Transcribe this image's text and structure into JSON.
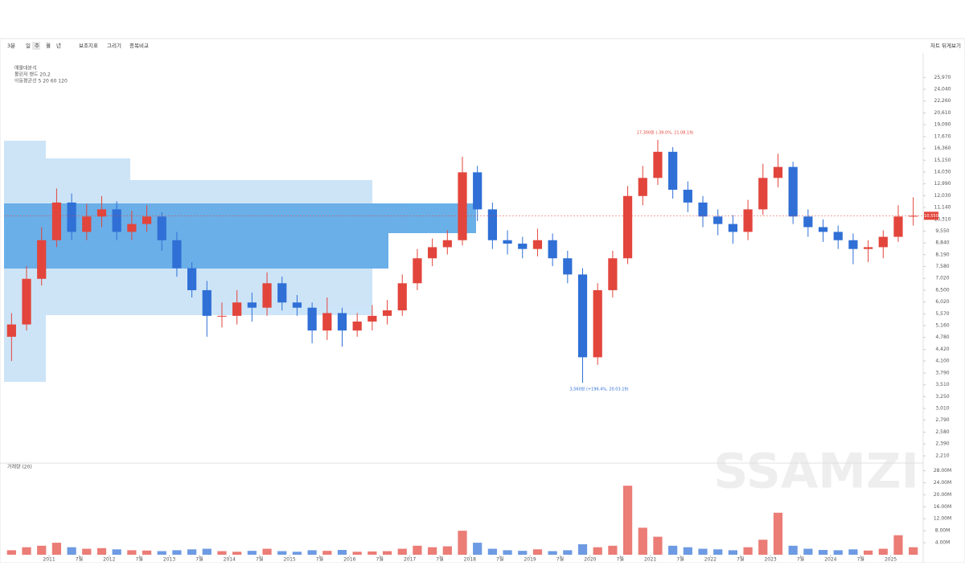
{
  "toolbar": {
    "period": "3분",
    "intervals": [
      "일",
      "주",
      "월",
      "년"
    ],
    "tools": [
      "보조지표",
      "그리기",
      "종목비교"
    ],
    "right": "차트 뒤게보기"
  },
  "legend": [
    "매물대분석 ",
    "볼린저 밴드 20,2",
    "이동평균선 5 20 60 120"
  ],
  "annotations": {
    "high": "17,300원 (-39.0%, 21.08.19)",
    "low": "3,560원 (+196.4%, 20.03.19)",
    "watermark": "SSAMZI",
    "volume_title": "거래량 (20)"
  },
  "chart_data": {
    "type": "candlestick",
    "log_scale": true,
    "up_color": "#e2453c",
    "down_color": "#2f6fd6",
    "volume_color": "#e8a0a0",
    "open": [
      4800,
      5200,
      7000,
      9000,
      11500,
      9500,
      10500,
      11000,
      9500,
      10000,
      10500,
      9000,
      7500,
      6500,
      5500,
      5500,
      6000,
      5800,
      6800,
      6000,
      5800,
      5000,
      5600,
      5000,
      5300,
      5500,
      5700,
      6800,
      8000,
      8600,
      9000,
      14000,
      11000,
      9000,
      8800,
      8500,
      9000,
      8000,
      7200,
      4200,
      6500,
      8000,
      12000,
      13500,
      16000,
      12500,
      11500,
      10500,
      10000,
      9500,
      11000,
      13500,
      14500,
      10500,
      9800,
      9500,
      9000,
      8500,
      8600,
      9200,
      10500
    ],
    "high": [
      5600,
      7600,
      9800,
      12600,
      12200,
      11400,
      12000,
      11600,
      10900,
      11300,
      10800,
      9500,
      7800,
      6900,
      6000,
      6500,
      6400,
      7300,
      7100,
      6300,
      6000,
      6200,
      5800,
      5600,
      5900,
      6100,
      7200,
      8500,
      9100,
      9600,
      15500,
      14600,
      11500,
      9600,
      9200,
      9700,
      9400,
      8400,
      7500,
      6800,
      8400,
      12800,
      14600,
      17300,
      16500,
      13200,
      12000,
      11000,
      10600,
      11700,
      14800,
      15800,
      15000,
      11000,
      10300,
      9900,
      9400,
      9000,
      9600,
      11300,
      11900
    ],
    "low": [
      4100,
      5000,
      6700,
      8600,
      9000,
      9000,
      9800,
      9000,
      9000,
      9500,
      8400,
      7100,
      6200,
      4800,
      5100,
      5200,
      5300,
      5500,
      5700,
      5500,
      4600,
      4700,
      4500,
      4800,
      5000,
      5200,
      5500,
      6500,
      7600,
      8200,
      8700,
      10200,
      8500,
      8200,
      8000,
      8100,
      7600,
      6800,
      3560,
      4000,
      6200,
      7700,
      11300,
      12900,
      11800,
      10800,
      9800,
      9300,
      8800,
      9000,
      10600,
      12700,
      10000,
      9200,
      8900,
      8500,
      7700,
      7800,
      8000,
      8900,
      9900
    ],
    "close": [
      5200,
      7000,
      9000,
      11500,
      9500,
      10500,
      11000,
      9500,
      10000,
      10500,
      9000,
      7500,
      6500,
      5500,
      5500,
      6000,
      5800,
      6800,
      6000,
      5800,
      5000,
      5600,
      5000,
      5300,
      5500,
      5700,
      6800,
      8000,
      8600,
      9000,
      14000,
      11000,
      9000,
      8800,
      8500,
      9000,
      8000,
      7200,
      4200,
      6500,
      8000,
      12000,
      13500,
      16000,
      12500,
      11500,
      10500,
      10000,
      9500,
      11000,
      13500,
      14500,
      10500,
      9800,
      9500,
      9000,
      8500,
      8600,
      9200,
      10500,
      10550
    ],
    "volume": [
      1.5,
      2.5,
      3.0,
      4.0,
      2.5,
      2.0,
      2.2,
      1.8,
      1.5,
      1.4,
      1.2,
      1.5,
      1.8,
      2.0,
      1.2,
      1.0,
      1.3,
      2.0,
      1.2,
      1.0,
      1.5,
      1.3,
      1.6,
      1.0,
      1.1,
      1.2,
      2.0,
      3.0,
      2.5,
      2.8,
      8.0,
      4.0,
      2.0,
      1.5,
      1.3,
      1.8,
      1.2,
      1.5,
      3.5,
      2.5,
      3.0,
      23.0,
      9.0,
      6.0,
      3.0,
      2.5,
      2.0,
      1.8,
      1.5,
      2.5,
      5.0,
      14.0,
      3.0,
      2.0,
      1.6,
      1.5,
      1.8,
      1.4,
      2.0,
      6.5,
      2.5
    ],
    "last_price": {
      "value": 10550,
      "label": "10,550"
    },
    "ylim": [
      2120,
      29800
    ],
    "yticks": [
      {
        "value": 2210,
        "label": "2,210"
      },
      {
        "value": 2390,
        "label": "2,390"
      },
      {
        "value": 2580,
        "label": "2,580"
      },
      {
        "value": 2790,
        "label": "2,790"
      },
      {
        "value": 3010,
        "label": "3,010"
      },
      {
        "value": 3250,
        "label": "3,250"
      },
      {
        "value": 3510,
        "label": "3,510"
      },
      {
        "value": 3790,
        "label": "3,790"
      },
      {
        "value": 4100,
        "label": "4,100"
      },
      {
        "value": 4420,
        "label": "4,420"
      },
      {
        "value": 4780,
        "label": "4,780"
      },
      {
        "value": 5160,
        "label": "5,160"
      },
      {
        "value": 5570,
        "label": "5,570"
      },
      {
        "value": 6020,
        "label": "6,020"
      },
      {
        "value": 6500,
        "label": "6,500"
      },
      {
        "value": 7020,
        "label": "7,020"
      },
      {
        "value": 7580,
        "label": "7,580"
      },
      {
        "value": 8190,
        "label": "8,190"
      },
      {
        "value": 8840,
        "label": "8,840"
      },
      {
        "value": 9550,
        "label": "9,550"
      },
      {
        "value": 10310,
        "label": "10,310"
      },
      {
        "value": 11140,
        "label": "11,140"
      },
      {
        "value": 12030,
        "label": "12,030"
      },
      {
        "value": 12990,
        "label": "12,990"
      },
      {
        "value": 14030,
        "label": "14,030"
      },
      {
        "value": 15150,
        "label": "15,150"
      },
      {
        "value": 16360,
        "label": "16,360"
      },
      {
        "value": 17670,
        "label": "17,670"
      },
      {
        "value": 19090,
        "label": "19,090"
      },
      {
        "value": 20610,
        "label": "20,610"
      },
      {
        "value": 22260,
        "label": "22,260"
      },
      {
        "value": 24040,
        "label": "24,040"
      },
      {
        "value": 25970,
        "label": "25,970"
      }
    ],
    "y2lim": [
      0,
      30
    ],
    "y2ticks": [
      {
        "value": 4,
        "label": "4.00M"
      },
      {
        "value": 8,
        "label": "8.00M"
      },
      {
        "value": 12,
        "label": "12.00M"
      },
      {
        "value": 16,
        "label": "16.00M"
      },
      {
        "value": 20,
        "label": "20.00M"
      },
      {
        "value": 24,
        "label": "24.00M"
      },
      {
        "value": 28,
        "label": "28.00M"
      }
    ],
    "xticks": [
      {
        "value": 3,
        "label": "2011"
      },
      {
        "value": 5,
        "label": "7월"
      },
      {
        "value": 7,
        "label": "2012"
      },
      {
        "value": 9,
        "label": "7월"
      },
      {
        "value": 11,
        "label": "2013"
      },
      {
        "value": 13,
        "label": "7월"
      },
      {
        "value": 15,
        "label": "2014"
      },
      {
        "value": 17,
        "label": "7월"
      },
      {
        "value": 19,
        "label": "2015"
      },
      {
        "value": 21,
        "label": "7월"
      },
      {
        "value": 23,
        "label": "2016"
      },
      {
        "value": 25,
        "label": "7월"
      },
      {
        "value": 27,
        "label": "2017"
      },
      {
        "value": 29,
        "label": "7월"
      },
      {
        "value": 31,
        "label": "2018"
      },
      {
        "value": 33,
        "label": "7월"
      },
      {
        "value": 35,
        "label": "2019"
      },
      {
        "value": 37,
        "label": "7월"
      },
      {
        "value": 39,
        "label": "2020"
      },
      {
        "value": 41,
        "label": "7월"
      },
      {
        "value": 43,
        "label": "2021"
      },
      {
        "value": 45,
        "label": "7월"
      },
      {
        "value": 47,
        "label": "2022"
      },
      {
        "value": 49,
        "label": "7월"
      },
      {
        "value": 51,
        "label": "2023"
      },
      {
        "value": 53,
        "label": "7월"
      },
      {
        "value": 55,
        "label": "2024"
      },
      {
        "value": 57,
        "label": "7월"
      },
      {
        "value": 59,
        "label": "2025"
      }
    ]
  }
}
